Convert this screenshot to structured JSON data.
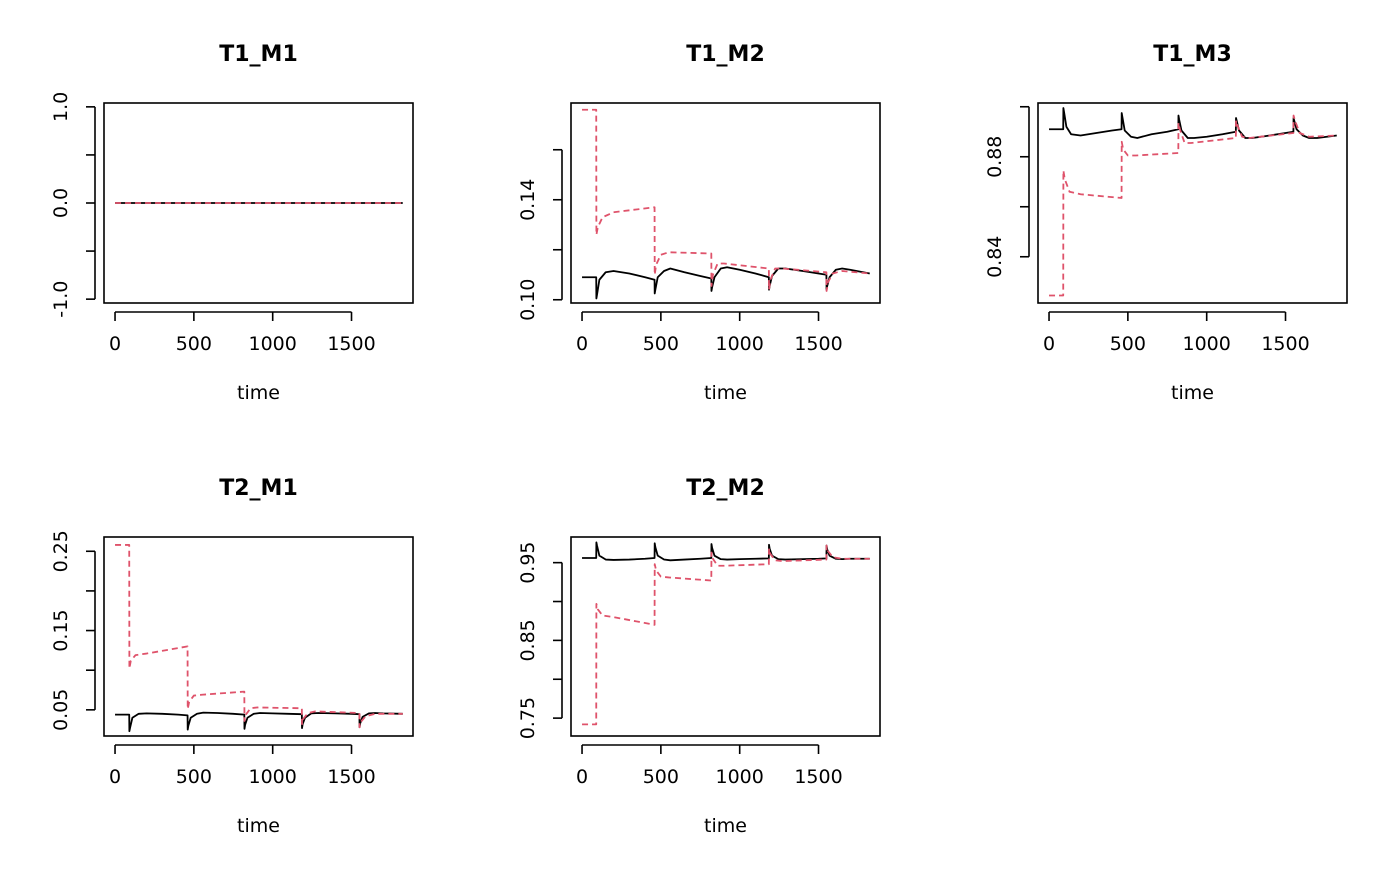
{
  "chart_data": [
    {
      "type": "line",
      "title": "T1_M1",
      "xlabel": "time",
      "ylabel": "",
      "xlim": [
        -70,
        1890
      ],
      "ylim": [
        -1.04,
        1.04
      ],
      "xticks": [
        0,
        500,
        1000,
        1500
      ],
      "xtick_labels": [
        "0",
        "500",
        "1000",
        "1500"
      ],
      "yticks": [
        -1.0,
        -0.5,
        0.0,
        0.5,
        1.0
      ],
      "ytick_labels": [
        "-1.0",
        "",
        "0.0",
        "",
        "1.0"
      ],
      "series": [
        {
          "color": "#000000",
          "dash": false,
          "x": [
            0,
            1825
          ],
          "y": [
            0,
            0
          ]
        },
        {
          "color": "#DF536B",
          "dash": true,
          "x": [
            0,
            1825
          ],
          "y": [
            0,
            0
          ]
        }
      ]
    },
    {
      "type": "line",
      "title": "T1_M2",
      "xlabel": "time",
      "ylabel": "",
      "xlim": [
        -70,
        1890
      ],
      "ylim": [
        0.0987,
        0.1787
      ],
      "xticks": [
        0,
        500,
        1000,
        1500
      ],
      "xtick_labels": [
        "0",
        "500",
        "1000",
        "1500"
      ],
      "yticks": [
        0.1,
        0.12,
        0.14,
        0.16
      ],
      "ytick_labels": [
        "0.10",
        "",
        "0.14",
        ""
      ],
      "series": [
        {
          "color": "#000000",
          "dash": false,
          "x": [
            0,
            90,
            91,
            95,
            110,
            150,
            200,
            300,
            400,
            460,
            461,
            465,
            480,
            520,
            560,
            650,
            750,
            820,
            821,
            825,
            840,
            880,
            920,
            1000,
            1100,
            1185,
            1186,
            1190,
            1205,
            1245,
            1290,
            1400,
            1500,
            1550,
            1551,
            1555,
            1570,
            1610,
            1650,
            1700,
            1825
          ],
          "y": [
            0.109,
            0.109,
            0.1005,
            0.102,
            0.108,
            0.111,
            0.1115,
            0.1105,
            0.109,
            0.108,
            0.1025,
            0.104,
            0.109,
            0.1115,
            0.1125,
            0.111,
            0.1095,
            0.1085,
            0.1035,
            0.105,
            0.109,
            0.1125,
            0.113,
            0.112,
            0.1105,
            0.109,
            0.104,
            0.1055,
            0.1095,
            0.1125,
            0.1125,
            0.1115,
            0.1105,
            0.11,
            0.104,
            0.1055,
            0.109,
            0.112,
            0.1125,
            0.112,
            0.1105
          ]
        },
        {
          "color": "#DF536B",
          "dash": true,
          "x": [
            0,
            90,
            91,
            100,
            130,
            200,
            460,
            461,
            470,
            500,
            550,
            820,
            821,
            830,
            860,
            900,
            1185,
            1186,
            1195,
            1225,
            1270,
            1550,
            1551,
            1560,
            1590,
            1650,
            1825
          ],
          "y": [
            0.176,
            0.176,
            0.126,
            0.129,
            0.133,
            0.135,
            0.137,
            0.11,
            0.114,
            0.118,
            0.119,
            0.1185,
            0.1055,
            0.11,
            0.1145,
            0.1145,
            0.1125,
            0.104,
            0.108,
            0.1125,
            0.1125,
            0.111,
            0.1035,
            0.107,
            0.1105,
            0.1115,
            0.1105
          ]
        }
      ]
    },
    {
      "type": "line",
      "title": "T1_M3",
      "xlabel": "time",
      "ylabel": "",
      "xlim": [
        -70,
        1890
      ],
      "ylim": [
        0.8215,
        0.9015
      ],
      "xticks": [
        0,
        500,
        1000,
        1500
      ],
      "xtick_labels": [
        "0",
        "500",
        "1000",
        "1500"
      ],
      "yticks": [
        0.84,
        0.86,
        0.88,
        0.9
      ],
      "ytick_labels": [
        "0.84",
        "",
        "0.88",
        ""
      ],
      "series": [
        {
          "color": "#000000",
          "dash": false,
          "x": [
            0,
            90,
            91,
            95,
            110,
            140,
            200,
            300,
            400,
            460,
            461,
            465,
            480,
            520,
            560,
            650,
            750,
            820,
            821,
            825,
            840,
            880,
            920,
            1000,
            1100,
            1185,
            1186,
            1190,
            1205,
            1245,
            1290,
            1400,
            1500,
            1550,
            1551,
            1555,
            1570,
            1610,
            1650,
            1700,
            1825
          ],
          "y": [
            0.891,
            0.891,
            0.8995,
            0.898,
            0.892,
            0.889,
            0.8885,
            0.8895,
            0.8905,
            0.891,
            0.8975,
            0.896,
            0.8905,
            0.888,
            0.8875,
            0.889,
            0.89,
            0.891,
            0.8965,
            0.895,
            0.8905,
            0.8875,
            0.8875,
            0.888,
            0.889,
            0.89,
            0.8955,
            0.8945,
            0.8905,
            0.8875,
            0.8875,
            0.8885,
            0.8895,
            0.89,
            0.8955,
            0.8945,
            0.891,
            0.8885,
            0.8875,
            0.8875,
            0.8885
          ]
        },
        {
          "color": "#DF536B",
          "dash": true,
          "x": [
            0,
            90,
            91,
            100,
            130,
            200,
            460,
            461,
            470,
            500,
            550,
            820,
            821,
            830,
            860,
            900,
            1185,
            1186,
            1195,
            1225,
            1270,
            1550,
            1551,
            1560,
            1590,
            1650,
            1825
          ],
          "y": [
            0.8245,
            0.8245,
            0.8745,
            0.871,
            0.866,
            0.865,
            0.8635,
            0.886,
            0.883,
            0.8805,
            0.8805,
            0.8815,
            0.8935,
            0.891,
            0.8855,
            0.8855,
            0.8875,
            0.8945,
            0.8925,
            0.888,
            0.8875,
            0.8895,
            0.8965,
            0.8945,
            0.8895,
            0.888,
            0.8885
          ]
        }
      ]
    },
    {
      "type": "line",
      "title": "T2_M1",
      "xlabel": "time",
      "ylabel": "",
      "xlim": [
        -70,
        1890
      ],
      "ylim": [
        0.017,
        0.268
      ],
      "xticks": [
        0,
        500,
        1000,
        1500
      ],
      "xtick_labels": [
        "0",
        "500",
        "1000",
        "1500"
      ],
      "yticks": [
        0.05,
        0.1,
        0.15,
        0.2,
        0.25
      ],
      "ytick_labels": [
        "0.05",
        "",
        "0.15",
        "",
        "0.25"
      ],
      "series": [
        {
          "color": "#000000",
          "dash": false,
          "x": [
            0,
            90,
            91,
            95,
            110,
            150,
            200,
            300,
            400,
            460,
            461,
            465,
            480,
            520,
            560,
            650,
            750,
            820,
            821,
            825,
            840,
            880,
            920,
            1000,
            1100,
            1185,
            1186,
            1190,
            1205,
            1245,
            1290,
            1400,
            1500,
            1550,
            1551,
            1555,
            1570,
            1610,
            1650,
            1700,
            1825
          ],
          "y": [
            0.044,
            0.044,
            0.023,
            0.027,
            0.04,
            0.045,
            0.0455,
            0.045,
            0.044,
            0.043,
            0.025,
            0.03,
            0.04,
            0.045,
            0.0465,
            0.046,
            0.045,
            0.044,
            0.026,
            0.031,
            0.04,
            0.045,
            0.046,
            0.0455,
            0.045,
            0.0445,
            0.027,
            0.032,
            0.04,
            0.0455,
            0.046,
            0.0455,
            0.045,
            0.0445,
            0.028,
            0.033,
            0.041,
            0.0455,
            0.046,
            0.0455,
            0.045
          ]
        },
        {
          "color": "#DF536B",
          "dash": true,
          "x": [
            0,
            90,
            91,
            100,
            130,
            200,
            460,
            461,
            470,
            500,
            550,
            820,
            821,
            830,
            860,
            900,
            1185,
            1186,
            1195,
            1225,
            1270,
            1550,
            1551,
            1560,
            1590,
            1650,
            1825
          ],
          "y": [
            0.258,
            0.258,
            0.102,
            0.112,
            0.119,
            0.121,
            0.13,
            0.051,
            0.06,
            0.068,
            0.069,
            0.073,
            0.036,
            0.044,
            0.052,
            0.053,
            0.052,
            0.032,
            0.039,
            0.046,
            0.048,
            0.046,
            0.028,
            0.035,
            0.042,
            0.045,
            0.045
          ]
        }
      ]
    },
    {
      "type": "line",
      "title": "T2_M2",
      "xlabel": "time",
      "ylabel": "",
      "xlim": [
        -70,
        1890
      ],
      "ylim": [
        0.727,
        0.983
      ],
      "xticks": [
        0,
        500,
        1000,
        1500
      ],
      "xtick_labels": [
        "0",
        "500",
        "1000",
        "1500"
      ],
      "yticks": [
        0.75,
        0.8,
        0.85,
        0.9,
        0.95
      ],
      "ytick_labels": [
        "0.75",
        "",
        "0.85",
        "",
        "0.95"
      ],
      "series": [
        {
          "color": "#000000",
          "dash": false,
          "x": [
            0,
            90,
            91,
            95,
            110,
            150,
            200,
            300,
            400,
            460,
            461,
            465,
            480,
            520,
            560,
            650,
            750,
            820,
            821,
            825,
            840,
            880,
            920,
            1000,
            1100,
            1185,
            1186,
            1190,
            1205,
            1245,
            1290,
            1400,
            1500,
            1550,
            1551,
            1555,
            1570,
            1610,
            1650,
            1700,
            1825
          ],
          "y": [
            0.956,
            0.956,
            0.976,
            0.972,
            0.959,
            0.954,
            0.9535,
            0.954,
            0.955,
            0.956,
            0.975,
            0.97,
            0.959,
            0.954,
            0.953,
            0.954,
            0.955,
            0.956,
            0.974,
            0.969,
            0.959,
            0.9545,
            0.954,
            0.9545,
            0.955,
            0.9555,
            0.973,
            0.968,
            0.959,
            0.9545,
            0.954,
            0.9545,
            0.955,
            0.9555,
            0.972,
            0.967,
            0.959,
            0.955,
            0.9545,
            0.955,
            0.955
          ]
        },
        {
          "color": "#DF536B",
          "dash": true,
          "x": [
            0,
            90,
            91,
            100,
            130,
            200,
            460,
            461,
            470,
            500,
            550,
            820,
            821,
            830,
            860,
            900,
            1185,
            1186,
            1195,
            1225,
            1270,
            1550,
            1551,
            1560,
            1590,
            1650,
            1825
          ],
          "y": [
            0.742,
            0.742,
            0.897,
            0.89,
            0.882,
            0.88,
            0.87,
            0.948,
            0.94,
            0.932,
            0.931,
            0.927,
            0.963,
            0.955,
            0.946,
            0.946,
            0.948,
            0.968,
            0.961,
            0.953,
            0.952,
            0.954,
            0.972,
            0.965,
            0.957,
            0.955,
            0.955
          ]
        }
      ]
    }
  ]
}
